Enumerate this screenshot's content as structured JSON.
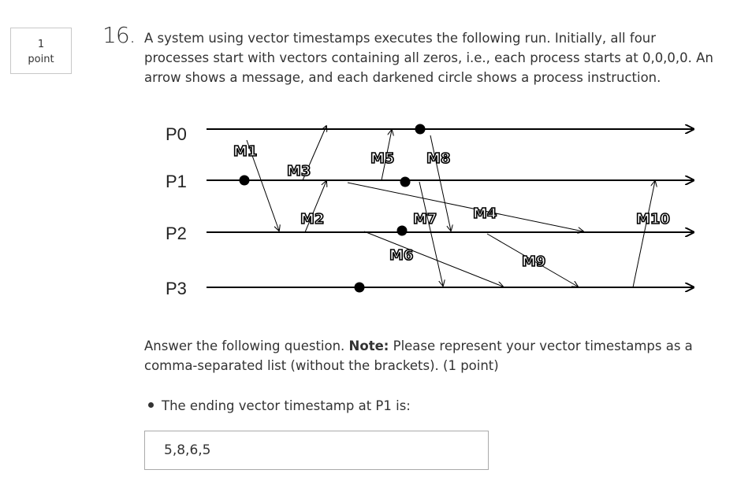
{
  "points": {
    "value": "1",
    "unit": "point"
  },
  "question": {
    "number": "16.",
    "text": "A system using vector timestamps executes the following run. Initially, all four processes start with vectors containing all zeros, i.e., each process starts at 0,0,0,0. An arrow shows a message, and each darkened circle shows a process instruction."
  },
  "diagram": {
    "processes": [
      "P0",
      "P1",
      "P2",
      "P3"
    ],
    "messages": [
      "M1",
      "M3",
      "M2",
      "M5",
      "M8",
      "M7",
      "M4",
      "M6",
      "M9",
      "M10"
    ]
  },
  "answer": {
    "instruction_prefix": "Answer the following question. ",
    "note_label": "Note:",
    "instruction_suffix": " Please represent your vector timestamps as a comma-separated list (without the brackets). (1 point)",
    "bullet": "The ending vector timestamp at P1 is:",
    "input_value": "5,8,6,5"
  }
}
